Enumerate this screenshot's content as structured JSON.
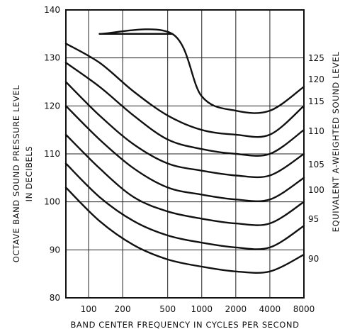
{
  "chart_data": {
    "type": "line",
    "title": "",
    "xlabel": "BAND CENTER FREQUENCY IN CYCLES PER SECOND",
    "ylabel": "OCTAVE BAND SOUND PRESSURE LEVEL IN DECIBELS",
    "y2label": "EQUIVALENT A-WEIGHTED SOUND LEVEL",
    "x_scale": "log",
    "xlim": [
      63,
      8000
    ],
    "ylim": [
      80,
      140
    ],
    "x_ticks": [
      "100",
      "200",
      "500",
      "1000",
      "2000",
      "4000",
      "8000"
    ],
    "y_ticks": [
      "80",
      "90",
      "100",
      "110",
      "120",
      "130",
      "140"
    ],
    "grid": true,
    "x": [
      63,
      125,
      250,
      500,
      1000,
      2000,
      4000,
      8000
    ],
    "series": [
      {
        "name": "90",
        "values": [
          103,
          96,
          91,
          88,
          86.5,
          85.5,
          85.5,
          89
        ]
      },
      {
        "name": "95",
        "values": [
          108,
          101,
          96,
          93,
          91.5,
          90.5,
          90.5,
          95
        ]
      },
      {
        "name": "100",
        "values": [
          114,
          107,
          101,
          98,
          96.5,
          95.5,
          95.5,
          100
        ]
      },
      {
        "name": "105",
        "values": [
          120,
          113,
          107,
          103,
          101.5,
          100.5,
          100.5,
          105
        ]
      },
      {
        "name": "110",
        "values": [
          125,
          118,
          112,
          108,
          106.5,
          105.5,
          105.5,
          110
        ]
      },
      {
        "name": "115",
        "values": [
          129,
          124,
          118,
          113,
          111,
          110,
          110,
          115
        ]
      },
      {
        "name": "120",
        "values": [
          133,
          129,
          123,
          118,
          115,
          114,
          114,
          120
        ]
      },
      {
        "name": "125",
        "values": [
          135,
          135,
          135,
          130,
          122,
          119,
          119,
          124
        ]
      }
    ],
    "right_ticks": [
      "125",
      "120",
      "115",
      "110",
      "105",
      "100",
      "95",
      "90"
    ]
  }
}
